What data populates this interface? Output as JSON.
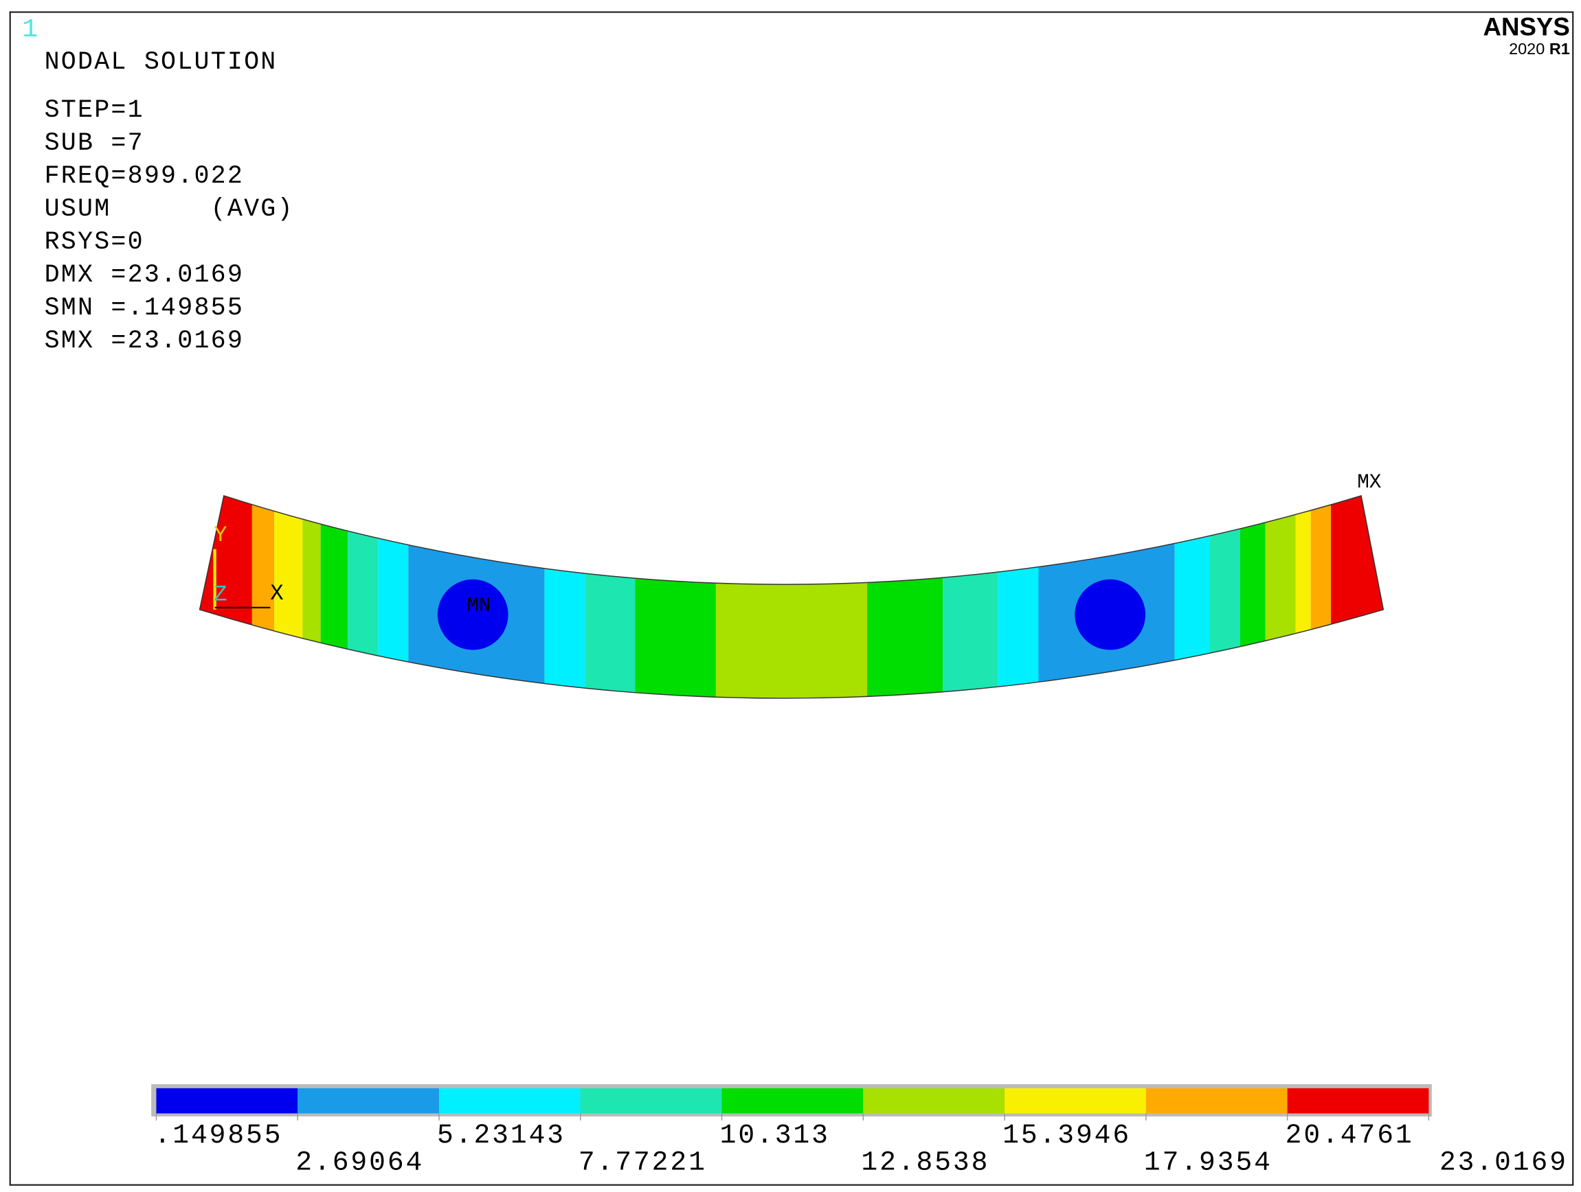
{
  "window_number": "1",
  "logo": {
    "brand": "ANSYS",
    "version": "2020",
    "release": "R1"
  },
  "info": {
    "title": "NODAL SOLUTION",
    "lines": [
      "STEP=1",
      "SUB =7",
      "FREQ=899.022",
      "USUM      (AVG)",
      "RSYS=0",
      "DMX =23.0169",
      "SMN =.149855",
      "SMX =23.0169"
    ]
  },
  "labels": {
    "min": "MN",
    "max": "MX"
  },
  "triad": {
    "x": "X",
    "y": "Y",
    "z": "Z"
  },
  "legend": {
    "labels": [
      ".149855",
      "2.69064",
      "5.23143",
      "7.77221",
      "10.313",
      "12.8538",
      "15.3946",
      "17.9354",
      "20.4761",
      "23.0169"
    ],
    "colors": [
      "#0000ee",
      "#1a9be8",
      "#00f0ff",
      "#1de6b0",
      "#00dd00",
      "#a8e000",
      "#f8f000",
      "#ffaa00",
      "#ee0000"
    ]
  }
}
